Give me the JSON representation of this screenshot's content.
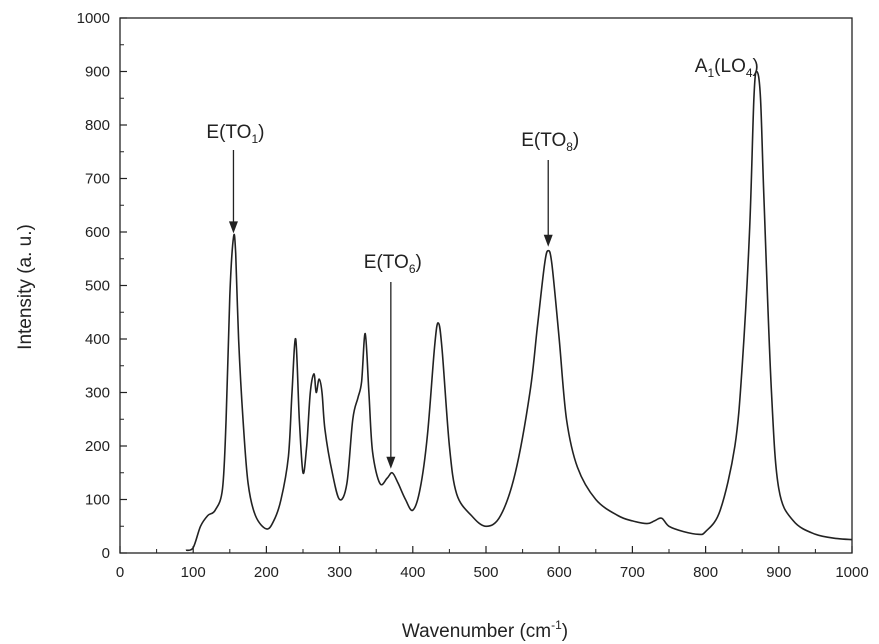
{
  "chart_data": {
    "type": "line",
    "title": "",
    "xlabel": "Wavenumber (cm",
    "xlabel_sup": "-1",
    "xlabel_end": ")",
    "ylabel": "Intensity (a. u.)",
    "xlim": [
      0,
      1000
    ],
    "ylim": [
      0,
      1000
    ],
    "grid": false,
    "legend": "none",
    "line_color": "#222222",
    "xticks": [
      "0",
      "100",
      "200",
      "300",
      "400",
      "500",
      "600",
      "700",
      "800",
      "900",
      "1000"
    ],
    "yticks": [
      "0",
      "100",
      "200",
      "300",
      "400",
      "500",
      "600",
      "700",
      "800",
      "900",
      "1000"
    ],
    "series": [
      {
        "x": [
          90,
          100,
          110,
          120,
          130,
          140,
          145,
          150,
          155,
          158,
          162,
          168,
          175,
          185,
          200,
          210,
          220,
          230,
          235,
          240,
          245,
          250,
          255,
          260,
          265,
          268,
          272,
          276,
          280,
          290,
          300,
          310,
          318,
          325,
          330,
          335,
          340,
          345,
          355,
          365,
          372,
          380,
          390,
          400,
          410,
          420,
          430,
          435,
          440,
          450,
          460,
          480,
          500,
          520,
          540,
          560,
          570,
          580,
          585,
          590,
          600,
          610,
          625,
          650,
          680,
          700,
          720,
          730,
          740,
          750,
          770,
          790,
          800,
          820,
          840,
          850,
          860,
          866,
          870,
          875,
          880,
          890,
          900,
          920,
          950,
          980,
          1000
        ],
        "y": [
          5,
          10,
          50,
          70,
          80,
          120,
          250,
          480,
          590,
          560,
          400,
          250,
          130,
          70,
          45,
          60,
          100,
          180,
          300,
          400,
          250,
          150,
          200,
          300,
          335,
          300,
          325,
          300,
          230,
          150,
          100,
          130,
          250,
          290,
          320,
          410,
          300,
          190,
          130,
          140,
          150,
          130,
          100,
          80,
          120,
          220,
          390,
          430,
          380,
          200,
          110,
          70,
          50,
          70,
          150,
          300,
          420,
          540,
          565,
          540,
          400,
          250,
          160,
          100,
          70,
          60,
          55,
          60,
          65,
          50,
          40,
          35,
          40,
          80,
          200,
          350,
          600,
          850,
          900,
          850,
          650,
          300,
          120,
          60,
          35,
          27,
          25
        ]
      }
    ],
    "annotations": [
      {
        "main": "E(TO",
        "sub": "1",
        "close": ")",
        "x": 155,
        "y": 590
      },
      {
        "main": "E(TO",
        "sub": "6",
        "close": ")",
        "x": 370,
        "y": 150
      },
      {
        "main": "E(TO",
        "sub": "8",
        "close": ")",
        "x": 585,
        "y": 565
      },
      {
        "main": "A",
        "sub": "1",
        "mid": "(LO",
        "sub2": "4",
        "close": ")",
        "x": 870,
        "y": 900
      }
    ]
  }
}
